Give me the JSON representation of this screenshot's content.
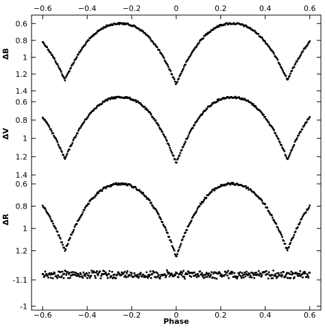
{
  "chart_data": {
    "type": "scatter",
    "title": "",
    "xlabel": "Phase",
    "xlim": [
      -0.65,
      0.65
    ],
    "xticks": [
      -0.6,
      -0.4,
      -0.2,
      0,
      0.2,
      0.4,
      0.6
    ],
    "xtick_labels": [
      "−0.6",
      "−0.4",
      "−0.2",
      "0",
      "0.2",
      "0.4",
      "0.6"
    ],
    "x_axis_top_labels": true,
    "y_inverted": true,
    "panels": [
      {
        "ylabel": "ΔB",
        "ylim": [
          0.5,
          1.42
        ],
        "yticks": [
          0.6,
          0.8,
          1,
          1.2,
          1.4
        ],
        "ytick_labels": [
          "0.6",
          "0.8",
          "1",
          "1.2",
          "1.4"
        ],
        "curve": {
          "max_mag": 0.6,
          "primary_min": 1.32,
          "secondary_min": 1.27
        },
        "points": [
          [
            -0.6,
            0.8
          ],
          [
            -0.5,
            1.27
          ],
          [
            -0.4,
            0.84
          ],
          [
            -0.25,
            0.6
          ],
          [
            -0.1,
            0.84
          ],
          [
            0.0,
            1.32
          ],
          [
            0.1,
            0.84
          ],
          [
            0.25,
            0.61
          ],
          [
            0.4,
            0.84
          ],
          [
            0.5,
            1.27
          ],
          [
            0.6,
            0.8
          ]
        ]
      },
      {
        "ylabel": "ΔV",
        "ylim": [
          0.5,
          1.4
        ],
        "yticks": [
          0.6,
          0.8,
          1,
          1.2,
          1.4
        ],
        "ytick_labels": [
          "0.6",
          "0.8",
          "1",
          "1.2",
          "1.4"
        ],
        "curve": {
          "max_mag": 0.55,
          "primary_min": 1.27,
          "secondary_min": 1.23
        },
        "points": [
          [
            -0.6,
            0.78
          ],
          [
            -0.5,
            1.23
          ],
          [
            -0.4,
            0.8
          ],
          [
            -0.25,
            0.55
          ],
          [
            -0.1,
            0.8
          ],
          [
            0.0,
            1.27
          ],
          [
            0.1,
            0.8
          ],
          [
            0.25,
            0.56
          ],
          [
            0.4,
            0.8
          ],
          [
            0.5,
            1.23
          ],
          [
            0.6,
            0.78
          ]
        ]
      },
      {
        "ylabel": "ΔR",
        "ylim": [
          0.52,
          1.32
        ],
        "yticks": [
          0.6,
          0.8,
          1,
          1.2
        ],
        "ytick_labels": [
          "0.6",
          "0.8",
          "1",
          "1.2"
        ],
        "curve": {
          "max_mag": 0.6,
          "primary_min": 1.25,
          "secondary_min": 1.2
        },
        "points": [
          [
            -0.6,
            0.78
          ],
          [
            -0.5,
            1.2
          ],
          [
            -0.4,
            0.8
          ],
          [
            -0.25,
            0.6
          ],
          [
            -0.1,
            0.8
          ],
          [
            0.0,
            1.25
          ],
          [
            0.1,
            0.8
          ],
          [
            0.25,
            0.61
          ],
          [
            0.4,
            0.8
          ],
          [
            0.5,
            1.2
          ],
          [
            0.6,
            0.78
          ]
        ]
      },
      {
        "ylabel": "",
        "ylim": [
          -1.16,
          -0.985
        ],
        "yticks": [
          -1.1,
          -1
        ],
        "ytick_labels": [
          "-1.1",
          "-1"
        ],
        "curve": {
          "constant": -1.12,
          "scatter": 0.012
        }
      }
    ]
  }
}
